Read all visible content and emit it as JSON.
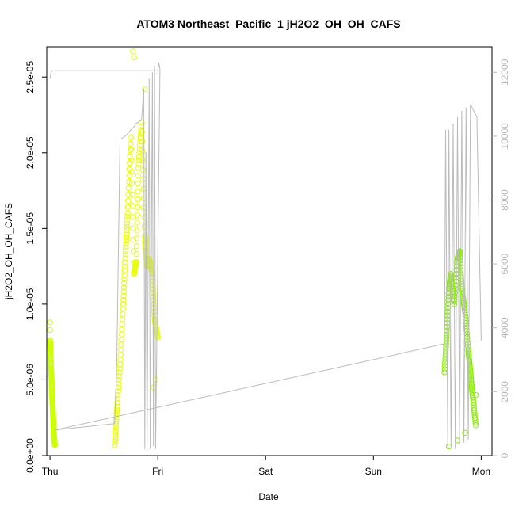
{
  "chart_data": {
    "type": "scatter",
    "title": "ATOM3 Northeast_Pacific_1 jH2O2_OH_OH_CAFS",
    "xlabel": "Date",
    "ylabel": "jH2O2_OH_OH_CAFS",
    "x_unit": "days since Thu 00:00",
    "xlim": [
      -0.03,
      4.1
    ],
    "ylim": [
      0,
      2.7e-05
    ],
    "y2lim": [
      0,
      12800
    ],
    "x_ticks": [
      {
        "value": 0,
        "label": "Thu"
      },
      {
        "value": 1,
        "label": "Fri"
      },
      {
        "value": 2,
        "label": "Sat"
      },
      {
        "value": 3,
        "label": "Sun"
      },
      {
        "value": 4,
        "label": "Mon"
      }
    ],
    "y_ticks": [
      {
        "value": 0,
        "label": "0.0e+00"
      },
      {
        "value": 5e-06,
        "label": "5.0e-06"
      },
      {
        "value": 1e-05,
        "label": "1.0e-05"
      },
      {
        "value": 1.5e-05,
        "label": "1.5e-05"
      },
      {
        "value": 2e-05,
        "label": "2.0e-05"
      },
      {
        "value": 2.5e-05,
        "label": "2.5e-05"
      }
    ],
    "y2_ticks": [
      {
        "value": 0,
        "label": "0"
      },
      {
        "value": 2000,
        "label": "2000"
      },
      {
        "value": 4000,
        "label": "4000"
      },
      {
        "value": 6000,
        "label": "6000"
      },
      {
        "value": 8000,
        "label": "8000"
      },
      {
        "value": 10000,
        "label": "10000"
      },
      {
        "value": 12000,
        "label": "12000"
      }
    ],
    "grid": false,
    "colors": {
      "scatter_flight1": "#ccff00",
      "scatter_flight2": "#e6ff00",
      "scatter_flight3": "#88ee00",
      "altitude": "#bbbbbb",
      "axis": "#000000"
    },
    "series": [
      {
        "name": "",
        "kind": "points",
        "color": "#ccff00",
        "x": [
          0.0,
          0.005,
          0.01,
          0.015,
          0.02,
          0.025,
          0.03,
          0.035,
          0.04,
          0.045
        ],
        "y": [
          7.6e-06,
          6.8e-06,
          5.8e-06,
          5e-06,
          4e-06,
          3.2e-06,
          2.4e-06,
          1.6e-06,
          1e-06,
          7e-07
        ],
        "extra_points": [
          [
            0.0,
            8.8e-06
          ],
          [
            0.0,
            8.3e-06
          ]
        ]
      },
      {
        "name": "",
        "kind": "points",
        "color": "#e6ff00",
        "x": [
          0.6,
          0.62,
          0.65,
          0.68,
          0.7,
          0.72,
          0.75,
          0.78,
          0.8,
          0.82,
          0.85,
          0.88,
          0.9,
          0.92,
          0.95,
          0.97,
          1.0
        ],
        "y": [
          7e-07,
          3e-06,
          6e-06,
          1e-05,
          1.33e-05,
          1.6e-05,
          2.1e-05,
          1.2e-05,
          1.28e-05,
          1.9e-05,
          2.2e-05,
          1.45e-05,
          1.25e-05,
          1.3e-05,
          1.2e-05,
          9e-06,
          7.8e-06
        ],
        "extra_points": [
          [
            0.77,
            2.67e-05
          ],
          [
            0.78,
            2.63e-05
          ],
          [
            0.88,
            2.42e-05
          ],
          [
            0.96,
            4.5e-06
          ],
          [
            0.98,
            5e-06
          ]
        ]
      },
      {
        "name": "",
        "kind": "points",
        "color": "#88ee00",
        "x": [
          3.66,
          3.68,
          3.7,
          3.72,
          3.75,
          3.78,
          3.8,
          3.82,
          3.85,
          3.88,
          3.9,
          3.92,
          3.95
        ],
        "y": [
          5.5e-06,
          8e-06,
          1.1e-05,
          1.2e-05,
          1e-05,
          1.3e-05,
          1.35e-05,
          1.1e-05,
          9.5e-06,
          7e-06,
          5.5e-06,
          4e-06,
          2e-06
        ],
        "extra_points": [
          [
            3.7,
            6e-07
          ],
          [
            3.78,
            1e-06
          ],
          [
            3.85,
            1.5e-06
          ],
          [
            3.95,
            4e-06
          ]
        ]
      },
      {
        "name": "",
        "kind": "line",
        "axis": "right",
        "color": "#bbbbbb",
        "x": [
          0.0,
          0.01,
          0.02,
          0.03,
          1.0,
          1.01,
          1.02,
          0.98,
          0.97,
          0.96,
          0.95,
          0.93,
          0.92,
          0.9,
          0.89,
          0.88,
          0.87,
          0.85,
          0.8,
          0.78,
          0.75,
          0.7,
          0.65,
          0.62,
          0.6,
          0.05,
          3.66,
          3.67,
          3.69,
          3.7,
          3.72,
          3.74,
          3.76,
          3.78,
          3.8,
          3.82,
          3.84,
          3.86,
          3.88,
          3.9,
          3.93,
          3.96,
          4.0
        ],
        "y": [
          11800,
          12000,
          12050,
          12050,
          12050,
          12300,
          12100,
          200,
          12200,
          300,
          12000,
          200,
          11800,
          150,
          9500,
          200,
          11500,
          10500,
          10400,
          10300,
          10200,
          10000,
          9900,
          3000,
          1000,
          800,
          3500,
          10200,
          300,
          10200,
          300,
          10400,
          200,
          10600,
          300,
          10800,
          400,
          10900,
          500,
          11000,
          10800,
          10600,
          3600
        ]
      }
    ]
  }
}
